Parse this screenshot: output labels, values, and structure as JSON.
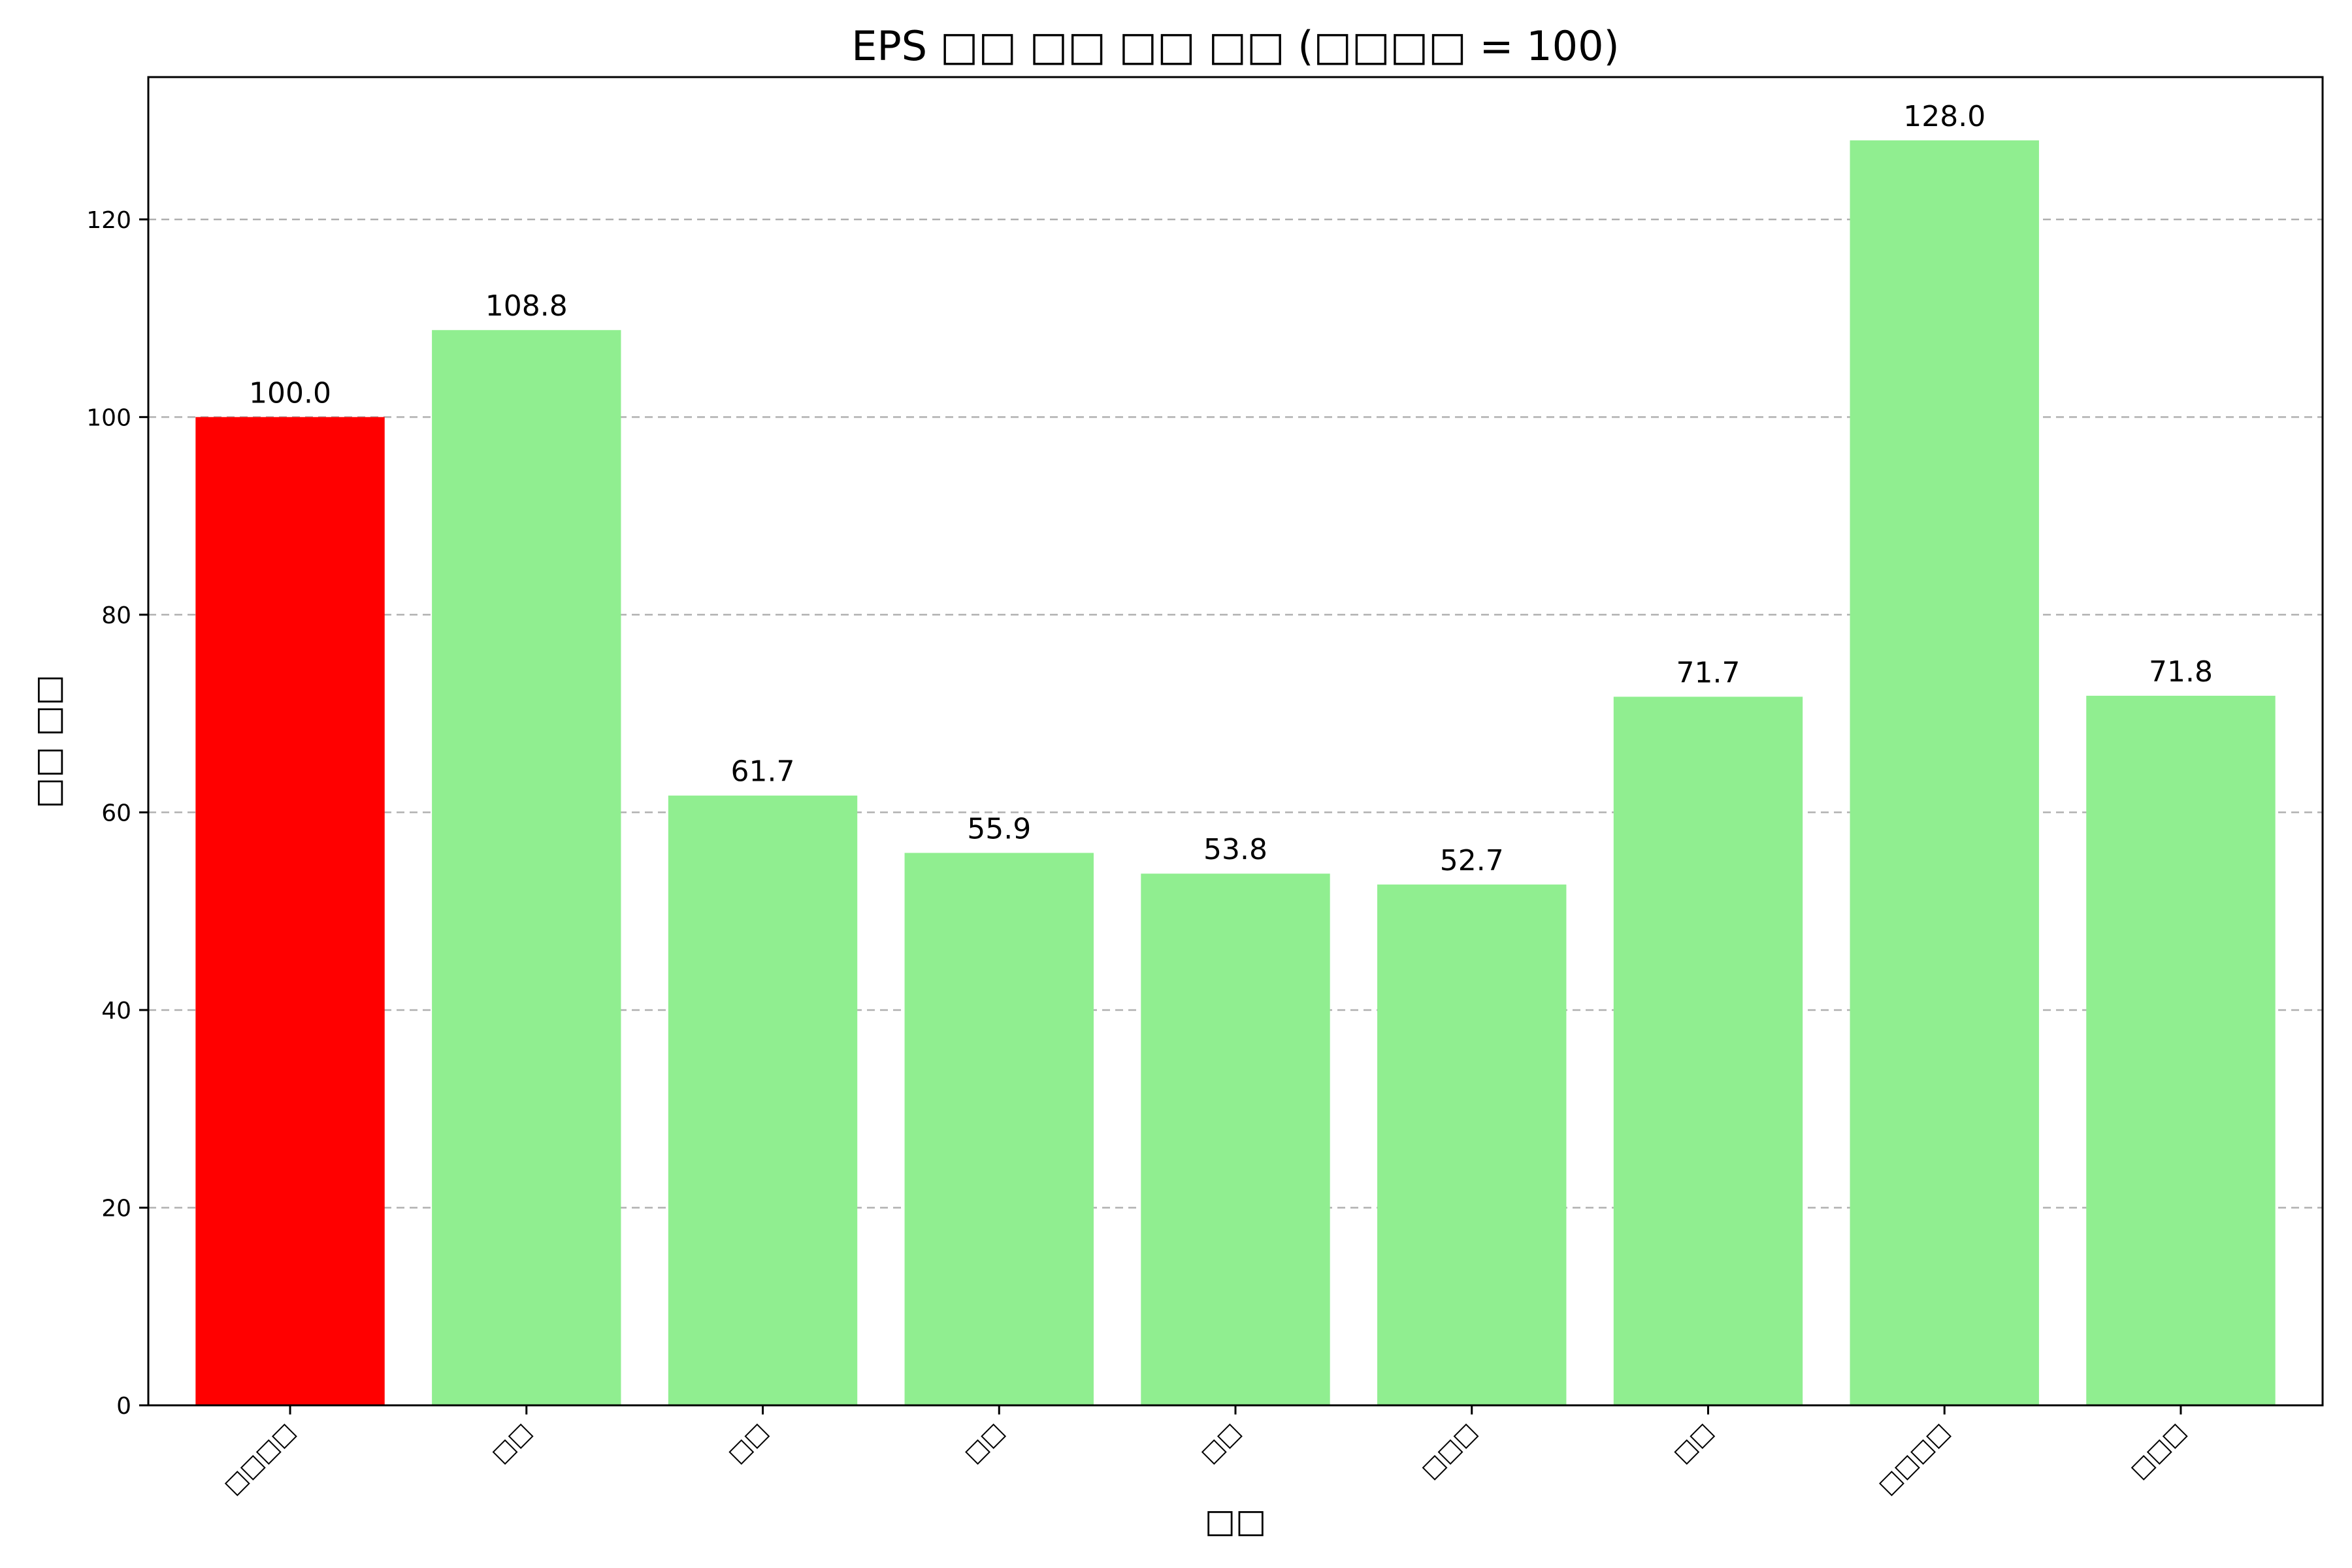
{
  "chart_data": {
    "type": "bar",
    "title": "EPS □□ □□ □□ □□ (□□□□ = 100)",
    "xlabel": "□□",
    "ylabel": "□□ □□",
    "categories": [
      "□□□□",
      "□□",
      "□□",
      "□□",
      "□□",
      "□□□",
      "□□",
      "□□□□",
      "□□□"
    ],
    "values": [
      100.0,
      108.8,
      61.7,
      55.9,
      53.8,
      52.7,
      71.7,
      128.0,
      71.8
    ],
    "value_labels": [
      "100.0",
      "108.8",
      "61.7",
      "55.9",
      "53.8",
      "52.7",
      "71.7",
      "128.0",
      "71.8"
    ],
    "bar_colors": [
      "#ff0000",
      "#90ee90",
      "#90ee90",
      "#90ee90",
      "#90ee90",
      "#90ee90",
      "#90ee90",
      "#90ee90",
      "#90ee90"
    ],
    "ylim": [
      0,
      134.4
    ],
    "yticks": [
      0,
      20,
      40,
      60,
      80,
      100,
      120
    ],
    "ytick_labels": [
      "0",
      "20",
      "40",
      "60",
      "80",
      "100",
      "120"
    ],
    "grid": "y-dashed",
    "legend": "none"
  }
}
